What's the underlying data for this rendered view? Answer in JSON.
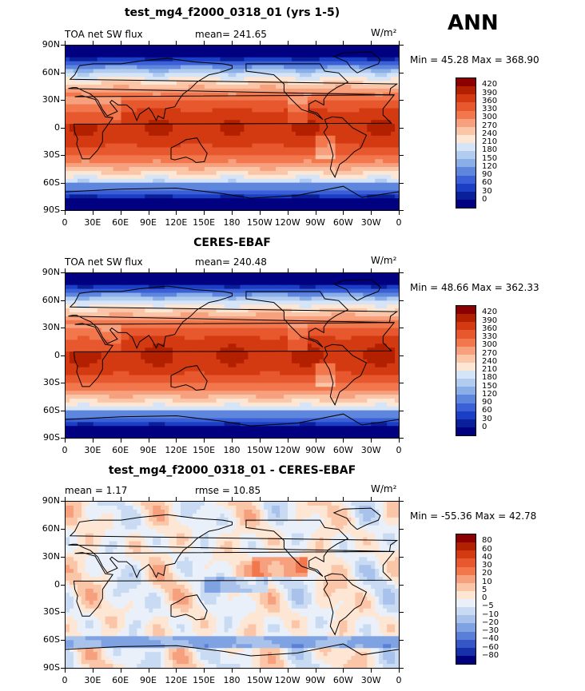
{
  "season": "ANN",
  "panels": [
    {
      "title": "test_mg4_f2000_0318_01 (yrs 1-5)",
      "left_text": "TOA net SW flux",
      "center_text": "mean= 241.65",
      "units": "W/m²",
      "minmax": "Min =  45.28 Max = 368.90",
      "kind": "abs",
      "colorbar": [
        "420",
        "390",
        "360",
        "330",
        "300",
        "270",
        "240",
        "210",
        "180",
        "150",
        "120",
        "90",
        "60",
        "30",
        "0"
      ]
    },
    {
      "title": "CERES-EBAF",
      "left_text": "TOA net SW flux",
      "center_text": "mean= 240.48",
      "units": "W/m²",
      "minmax": "Min =  48.66 Max = 362.33",
      "kind": "abs",
      "colorbar": [
        "420",
        "390",
        "360",
        "330",
        "300",
        "270",
        "240",
        "210",
        "180",
        "150",
        "120",
        "90",
        "60",
        "30",
        "0"
      ]
    },
    {
      "title": "test_mg4_f2000_0318_01 - CERES-EBAF",
      "left_text": "mean =    1.17",
      "center_text": "rmse =   10.85",
      "units": "W/m²",
      "minmax": "Min = -55.36 Max =  42.78",
      "kind": "diff",
      "colorbar": [
        "80",
        "60",
        "40",
        "30",
        "20",
        "10",
        "5",
        "0",
        "−5",
        "−10",
        "−20",
        "−30",
        "−40",
        "−60",
        "−80"
      ]
    }
  ],
  "lat_labels": [
    "90N",
    "60N",
    "30N",
    "0",
    "30S",
    "60S",
    "90S"
  ],
  "lon_labels": [
    "0",
    "30E",
    "60E",
    "90E",
    "120E",
    "150E",
    "180",
    "150W",
    "120W",
    "90W",
    "60W",
    "30W",
    "0"
  ],
  "colors": {
    "abs": [
      "#8b0000",
      "#b22000",
      "#d43a12",
      "#e8582e",
      "#f2774c",
      "#f7a07e",
      "#fbc6a8",
      "#fde6d4",
      "#d6e4f7",
      "#b2ccf0",
      "#8aaee8",
      "#5f86dd",
      "#3a5fd6",
      "#1a3ec4",
      "#0a1f9a",
      "#000080"
    ],
    "diff": [
      "#8b0000",
      "#b22000",
      "#d43a12",
      "#e8582e",
      "#f2774c",
      "#f7a07e",
      "#fbc6a8",
      "#fde6d4",
      "#eaf0fa",
      "#c9daf3",
      "#a8c2ec",
      "#7fa2e2",
      "#5a7fd8",
      "#3456c6",
      "#1530a8",
      "#00007f"
    ]
  }
}
